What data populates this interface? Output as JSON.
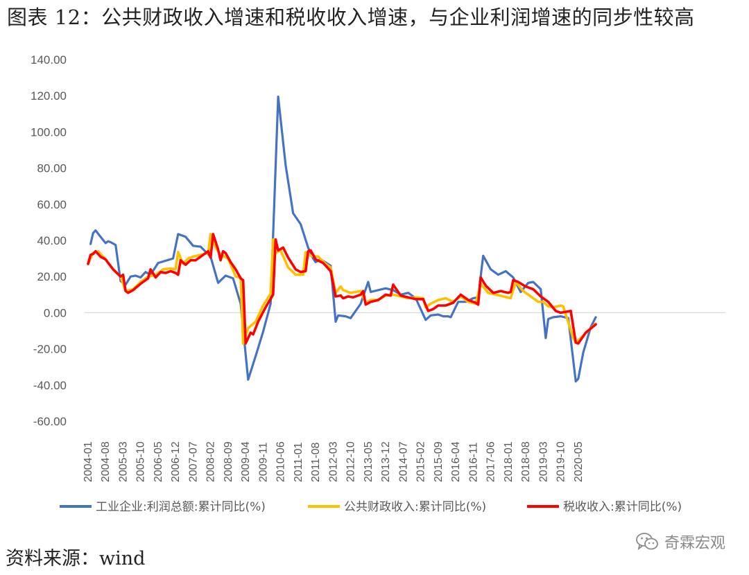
{
  "title": "图表 12：公共财政收入增速和税收收入增速，与企业利润增速的同步性较高",
  "source": "资料来源：wind",
  "watermark": "奇霖宏观",
  "colors": {
    "profit": "#4472C4",
    "fiscal": "#FFC000",
    "tax": "#FF0000"
  },
  "chart_data": {
    "type": "line",
    "ylim": [
      -60,
      140
    ],
    "yticks": [
      "140.00",
      "120.00",
      "100.00",
      "80.00",
      "60.00",
      "40.00",
      "20.00",
      "0.00",
      "-20.00",
      "-40.00",
      "-60.00"
    ],
    "xticks": [
      "2004-01",
      "2004-08",
      "2005-03",
      "2005-10",
      "2006-05",
      "2006-12",
      "2007-07",
      "2008-02",
      "2008-09",
      "2009-04",
      "2009-11",
      "2010-06",
      "2011-01",
      "2011-08",
      "2012-03",
      "2012-10",
      "2013-05",
      "2013-12",
      "2014-07",
      "2015-02",
      "2015-09",
      "2016-04",
      "2016-11",
      "2017-06",
      "2018-01",
      "2018-08",
      "2019-03",
      "2019-10",
      "2020-05"
    ],
    "grid": false,
    "legend_position": "bottom",
    "series": [
      {
        "name": "工业企业:利润总额:累计同比(%)",
        "color": "#4472C4",
        "points": [
          [
            "2004-02",
            38
          ],
          [
            "2004-03",
            44
          ],
          [
            "2004-04",
            45.5
          ],
          [
            "2004-06",
            42
          ],
          [
            "2004-08",
            38.5
          ],
          [
            "2004-09",
            39.5
          ],
          [
            "2004-10",
            39
          ],
          [
            "2004-12",
            37.5
          ],
          [
            "2005-02",
            17.5
          ],
          [
            "2005-04",
            15.5
          ],
          [
            "2005-06",
            20
          ],
          [
            "2005-08",
            20.5
          ],
          [
            "2005-10",
            19.5
          ],
          [
            "2005-12",
            22.5
          ],
          [
            "2006-02",
            21
          ],
          [
            "2006-05",
            27.5
          ],
          [
            "2006-11",
            30
          ],
          [
            "2007-01",
            43.5
          ],
          [
            "2007-04",
            42
          ],
          [
            "2007-07",
            37
          ],
          [
            "2007-10",
            36.5
          ],
          [
            "2008-02",
            31
          ],
          [
            "2008-05",
            16.5
          ],
          [
            "2008-08",
            20.5
          ],
          [
            "2008-11",
            19
          ],
          [
            "2009-02",
            5
          ],
          [
            "2009-05",
            -37
          ],
          [
            "2009-08",
            -24
          ],
          [
            "2009-11",
            -10.5
          ],
          [
            "2010-02",
            5
          ],
          [
            "2010-05",
            119.5
          ],
          [
            "2010-08",
            81.5
          ],
          [
            "2010-11",
            55
          ],
          [
            "2011-02",
            49
          ],
          [
            "2011-05",
            36
          ],
          [
            "2011-07",
            30
          ],
          [
            "2011-08",
            28
          ],
          [
            "2011-10",
            29.5
          ],
          [
            "2012-02",
            26
          ],
          [
            "2012-04",
            -5
          ],
          [
            "2012-05",
            -1.5
          ],
          [
            "2012-08",
            -2
          ],
          [
            "2012-10",
            -3
          ],
          [
            "2013-02",
            5
          ],
          [
            "2013-05",
            17
          ],
          [
            "2013-06",
            11.5
          ],
          [
            "2013-09",
            12.5
          ],
          [
            "2013-12",
            13.5
          ],
          [
            "2014-03",
            12.5
          ],
          [
            "2014-06",
            10
          ],
          [
            "2014-09",
            11
          ],
          [
            "2014-12",
            8
          ],
          [
            "2015-04",
            -4
          ],
          [
            "2015-06",
            -1.5
          ],
          [
            "2015-09",
            -1
          ],
          [
            "2015-11",
            -2
          ],
          [
            "2016-01",
            -2
          ],
          [
            "2016-02",
            -2.5
          ],
          [
            "2016-05",
            6
          ],
          [
            "2016-08",
            6
          ],
          [
            "2016-11",
            8
          ],
          [
            "2017-01",
            8.5
          ],
          [
            "2017-03",
            31.5
          ],
          [
            "2017-06",
            24
          ],
          [
            "2017-09",
            21
          ],
          [
            "2017-12",
            23
          ],
          [
            "2018-03",
            19.5
          ],
          [
            "2018-06",
            11.5
          ],
          [
            "2018-09",
            16.5
          ],
          [
            "2018-11",
            17
          ],
          [
            "2019-02",
            13
          ],
          [
            "2019-04",
            -14
          ],
          [
            "2019-05",
            -3.5
          ],
          [
            "2019-07",
            -2.5
          ],
          [
            "2019-10",
            -2
          ],
          [
            "2020-01",
            -3
          ],
          [
            "2020-04",
            -38
          ],
          [
            "2020-05",
            -36.5
          ],
          [
            "2020-07",
            -22
          ],
          [
            "2020-10",
            -8
          ],
          [
            "2020-12",
            -2.5
          ]
        ]
      },
      {
        "name": "公共财政收入:累计同比(%)",
        "color": "#FFC000",
        "points": [
          [
            "2004-01",
            27
          ],
          [
            "2004-03",
            33
          ],
          [
            "2004-05",
            34
          ],
          [
            "2004-08",
            29.5
          ],
          [
            "2004-11",
            24
          ],
          [
            "2005-02",
            20
          ],
          [
            "2005-04",
            12
          ],
          [
            "2005-07",
            13
          ],
          [
            "2005-10",
            17
          ],
          [
            "2006-01",
            20
          ],
          [
            "2006-04",
            21
          ],
          [
            "2006-07",
            24
          ],
          [
            "2006-10",
            24.5
          ],
          [
            "2006-12",
            24
          ],
          [
            "2007-01",
            33.5
          ],
          [
            "2007-03",
            27
          ],
          [
            "2007-05",
            30
          ],
          [
            "2007-07",
            31
          ],
          [
            "2008-01",
            33
          ],
          [
            "2008-02",
            43.5
          ],
          [
            "2008-04",
            36
          ],
          [
            "2008-06",
            32
          ],
          [
            "2008-09",
            30
          ],
          [
            "2008-12",
            20
          ],
          [
            "2009-02",
            19.5
          ],
          [
            "2009-03",
            -17
          ],
          [
            "2009-05",
            -8.5
          ],
          [
            "2009-08",
            -5
          ],
          [
            "2009-11",
            4
          ],
          [
            "2010-02",
            10.5
          ],
          [
            "2010-03",
            40.5
          ],
          [
            "2010-04",
            33
          ],
          [
            "2010-06",
            34.5
          ],
          [
            "2010-09",
            25
          ],
          [
            "2010-12",
            21
          ],
          [
            "2011-03",
            21
          ],
          [
            "2011-04",
            33.5
          ],
          [
            "2011-06",
            31.5
          ],
          [
            "2011-09",
            31
          ],
          [
            "2011-12",
            27
          ],
          [
            "2012-02",
            25
          ],
          [
            "2012-04",
            11
          ],
          [
            "2012-06",
            14.5
          ],
          [
            "2012-07",
            12.5
          ],
          [
            "2012-10",
            11
          ],
          [
            "2013-02",
            12
          ],
          [
            "2013-04",
            5.5
          ],
          [
            "2013-06",
            7
          ],
          [
            "2013-09",
            7
          ],
          [
            "2013-12",
            9.5
          ],
          [
            "2014-03",
            10
          ],
          [
            "2014-06",
            9
          ],
          [
            "2014-09",
            8
          ],
          [
            "2014-12",
            8.5
          ],
          [
            "2015-03",
            8
          ],
          [
            "2015-04",
            3
          ],
          [
            "2015-06",
            5
          ],
          [
            "2015-09",
            7
          ],
          [
            "2015-12",
            8
          ],
          [
            "2016-03",
            6
          ],
          [
            "2016-06",
            9
          ],
          [
            "2016-09",
            6
          ],
          [
            "2016-12",
            5
          ],
          [
            "2017-02",
            16
          ],
          [
            "2017-05",
            11
          ],
          [
            "2017-08",
            10
          ],
          [
            "2017-11",
            9
          ],
          [
            "2018-02",
            8
          ],
          [
            "2018-04",
            17
          ],
          [
            "2018-07",
            12
          ],
          [
            "2018-10",
            9
          ],
          [
            "2019-01",
            6
          ],
          [
            "2019-03",
            6
          ],
          [
            "2019-05",
            3.5
          ],
          [
            "2019-07",
            3
          ],
          [
            "2019-10",
            4
          ],
          [
            "2019-11",
            3.5
          ],
          [
            "2020-03",
            -14
          ],
          [
            "2020-04",
            -16.5
          ],
          [
            "2020-06",
            -14
          ],
          [
            "2020-09",
            -10
          ],
          [
            "2020-12",
            -6
          ]
        ]
      },
      {
        "name": "税收收入:累计同比(%)",
        "color": "#FF0000",
        "points": [
          [
            "2004-01",
            27
          ],
          [
            "2004-02",
            32
          ],
          [
            "2004-03",
            32.5
          ],
          [
            "2004-04",
            34
          ],
          [
            "2004-06",
            31
          ],
          [
            "2004-08",
            29.5
          ],
          [
            "2004-11",
            24
          ],
          [
            "2005-02",
            20
          ],
          [
            "2005-03",
            21
          ],
          [
            "2005-04",
            12
          ],
          [
            "2005-05",
            11
          ],
          [
            "2005-07",
            12.5
          ],
          [
            "2005-10",
            16
          ],
          [
            "2006-01",
            19
          ],
          [
            "2006-02",
            24
          ],
          [
            "2006-04",
            19.5
          ],
          [
            "2006-06",
            22.5
          ],
          [
            "2006-08",
            22
          ],
          [
            "2006-10",
            23
          ],
          [
            "2006-12",
            22
          ],
          [
            "2007-01",
            21
          ],
          [
            "2007-02",
            29
          ],
          [
            "2007-04",
            26.5
          ],
          [
            "2007-06",
            29
          ],
          [
            "2007-08",
            29
          ],
          [
            "2007-11",
            32
          ],
          [
            "2008-01",
            34
          ],
          [
            "2008-02",
            30.5
          ],
          [
            "2008-03",
            43.5
          ],
          [
            "2008-05",
            35
          ],
          [
            "2008-06",
            29
          ],
          [
            "2008-07",
            34
          ],
          [
            "2008-08",
            33
          ],
          [
            "2008-10",
            28
          ],
          [
            "2008-12",
            24
          ],
          [
            "2009-02",
            19
          ],
          [
            "2009-03",
            18
          ],
          [
            "2009-04",
            -17
          ],
          [
            "2009-06",
            -11
          ],
          [
            "2009-07",
            -12
          ],
          [
            "2009-09",
            -5
          ],
          [
            "2009-12",
            3
          ],
          [
            "2010-03",
            10
          ],
          [
            "2010-04",
            40.5
          ],
          [
            "2010-05",
            34.5
          ],
          [
            "2010-07",
            36
          ],
          [
            "2010-09",
            30.5
          ],
          [
            "2010-12",
            24
          ],
          [
            "2011-02",
            22.5
          ],
          [
            "2011-04",
            23
          ],
          [
            "2011-05",
            34
          ],
          [
            "2011-06",
            34.5
          ],
          [
            "2011-08",
            29.5
          ],
          [
            "2011-11",
            27.5
          ],
          [
            "2012-02",
            23
          ],
          [
            "2012-04",
            9
          ],
          [
            "2012-06",
            9.5
          ],
          [
            "2012-07",
            8
          ],
          [
            "2012-09",
            9
          ],
          [
            "2012-11",
            8.5
          ],
          [
            "2013-02",
            10
          ],
          [
            "2013-03",
            12
          ],
          [
            "2013-04",
            4.5
          ],
          [
            "2013-06",
            6
          ],
          [
            "2013-09",
            7
          ],
          [
            "2013-12",
            10
          ],
          [
            "2014-02",
            9.5
          ],
          [
            "2014-03",
            15.5
          ],
          [
            "2014-06",
            9.5
          ],
          [
            "2014-09",
            8.5
          ],
          [
            "2014-12",
            7.5
          ],
          [
            "2015-03",
            7.5
          ],
          [
            "2015-05",
            1
          ],
          [
            "2015-07",
            2
          ],
          [
            "2015-09",
            4
          ],
          [
            "2015-12",
            4
          ],
          [
            "2016-03",
            5.5
          ],
          [
            "2016-06",
            10
          ],
          [
            "2016-09",
            7
          ],
          [
            "2016-12",
            5.5
          ],
          [
            "2017-01",
            4.5
          ],
          [
            "2017-02",
            19.5
          ],
          [
            "2017-04",
            15
          ],
          [
            "2017-07",
            11
          ],
          [
            "2017-10",
            12
          ],
          [
            "2018-01",
            11
          ],
          [
            "2018-02",
            11.5
          ],
          [
            "2018-03",
            18
          ],
          [
            "2018-05",
            17
          ],
          [
            "2018-08",
            14.5
          ],
          [
            "2018-11",
            13
          ],
          [
            "2019-02",
            9
          ],
          [
            "2019-05",
            6
          ],
          [
            "2019-08",
            1
          ],
          [
            "2019-10",
            0
          ],
          [
            "2019-12",
            0.5
          ],
          [
            "2020-02",
            1
          ],
          [
            "2020-04",
            -16.5
          ],
          [
            "2020-05",
            -17
          ],
          [
            "2020-08",
            -11
          ],
          [
            "2020-12",
            -6.5
          ]
        ]
      }
    ]
  }
}
